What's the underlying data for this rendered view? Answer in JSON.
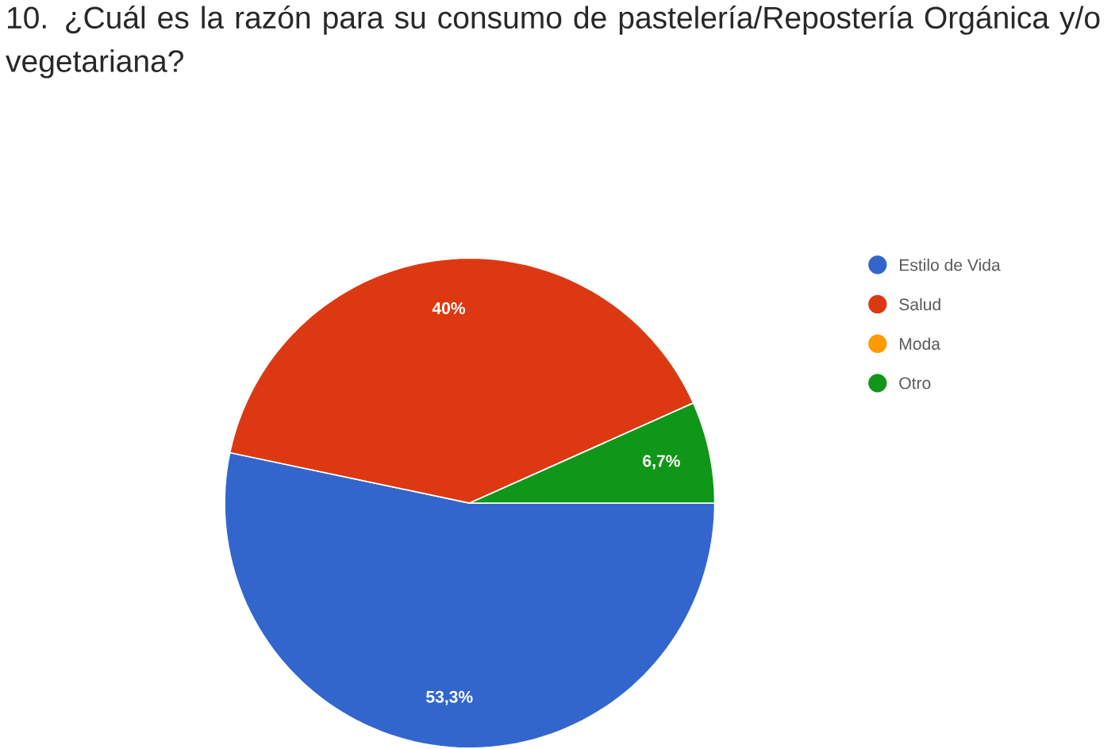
{
  "chart_data": {
    "type": "pie",
    "title": "10. ¿Cuál es la razón para su consumo de pastelería/Repostería Orgánica y/o vegetariana?",
    "categories": [
      "Estilo de Vida",
      "Salud",
      "Moda",
      "Otro"
    ],
    "values": [
      53.3,
      40,
      0,
      6.7
    ],
    "colors": [
      "#3366cc",
      "#dc3912",
      "#ff9900",
      "#109618"
    ],
    "value_labels": [
      "53,3%",
      "40%",
      null,
      "6,7%"
    ],
    "legend": "right"
  }
}
